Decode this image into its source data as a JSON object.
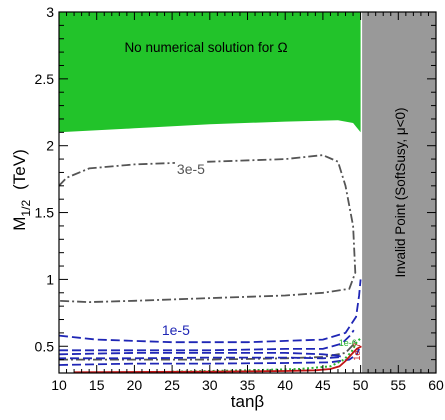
{
  "chart_data": {
    "type": "contour",
    "xlabel": "tanβ",
    "ylabel_main": "M",
    "ylabel_sub": "1/2",
    "ylabel_unit": "(TeV)",
    "xlim": [
      10,
      60
    ],
    "ylim": [
      0.3,
      3.0
    ],
    "xticks": [
      10,
      15,
      20,
      25,
      30,
      35,
      40,
      45,
      50,
      55,
      60
    ],
    "xtick_labels": [
      "10",
      "15",
      "20",
      "25",
      "30",
      "35",
      "40",
      "45",
      "50",
      "55",
      "60"
    ],
    "yticks": [
      0.5,
      1.0,
      1.5,
      2.0,
      2.5,
      3.0
    ],
    "ytick_labels": [
      "0.5",
      "1",
      "1.5",
      "2",
      "2.5",
      "3"
    ],
    "regions": [
      {
        "label": "No numerical solution for Ω",
        "color": "#22c32a",
        "boundary": [
          [
            10,
            2.1
          ],
          [
            20,
            2.13
          ],
          [
            30,
            2.16
          ],
          [
            40,
            2.18
          ],
          [
            47,
            2.19
          ],
          [
            49,
            2.17
          ],
          [
            50,
            2.1
          ],
          [
            50,
            3.0
          ],
          [
            10,
            3.0
          ]
        ]
      },
      {
        "label": "Invalid Point (SoftSusy, μ<0)",
        "color": "#999999",
        "boundary": [
          [
            50.2,
            0.3
          ],
          [
            60,
            0.3
          ],
          [
            60,
            3.0
          ],
          [
            50.2,
            3.0
          ]
        ]
      }
    ],
    "contours": [
      {
        "label": "3e-5",
        "color": "#555555",
        "dash": "dashdot",
        "points": [
          [
            10,
            1.7
          ],
          [
            11,
            1.76
          ],
          [
            14,
            1.83
          ],
          [
            20,
            1.86
          ],
          [
            30,
            1.88
          ],
          [
            40,
            1.9
          ],
          [
            45,
            1.93
          ],
          [
            47,
            1.88
          ],
          [
            48,
            1.7
          ],
          [
            49,
            1.4
          ],
          [
            49.3,
            1.05
          ],
          [
            48.5,
            0.93
          ],
          [
            45,
            0.9
          ],
          [
            40,
            0.88
          ],
          [
            30,
            0.86
          ],
          [
            20,
            0.84
          ],
          [
            14,
            0.83
          ],
          [
            10,
            0.84
          ]
        ],
        "label_at": [
          27.5,
          1.82
        ]
      },
      {
        "label": "",
        "color": "#555555",
        "dash": "dashdot",
        "points": [
          [
            10,
            0.4
          ],
          [
            20,
            0.4
          ],
          [
            30,
            0.4
          ],
          [
            40,
            0.41
          ],
          [
            45,
            0.42
          ],
          [
            48,
            0.45
          ],
          [
            49,
            0.51
          ],
          [
            49.2,
            0.54
          ]
        ],
        "label_at": null
      },
      {
        "label": "1e-5",
        "color": "#1f26b5",
        "dash": "dashed",
        "points": [
          [
            10,
            0.58
          ],
          [
            15,
            0.55
          ],
          [
            25,
            0.53
          ],
          [
            35,
            0.53
          ],
          [
            45,
            0.55
          ],
          [
            48,
            0.6
          ],
          [
            49.4,
            0.72
          ],
          [
            49.8,
            0.88
          ],
          [
            50,
            1.0
          ]
        ],
        "label_at": [
          25.5,
          0.615
        ]
      },
      {
        "label": "",
        "color": "#1f26b5",
        "dash": "dashed",
        "points": [
          [
            10,
            0.47
          ],
          [
            20,
            0.47
          ],
          [
            30,
            0.47
          ],
          [
            40,
            0.48
          ],
          [
            45,
            0.48
          ],
          [
            47.5,
            0.52
          ],
          [
            48.6,
            0.58
          ],
          [
            49.1,
            0.62
          ]
        ],
        "label_at": null
      },
      {
        "label": "",
        "color": "#1f26b5",
        "dash": "dashed",
        "points": [
          [
            10,
            0.44
          ],
          [
            20,
            0.45
          ],
          [
            30,
            0.45
          ],
          [
            40,
            0.45
          ],
          [
            45,
            0.44
          ],
          [
            47,
            0.43
          ],
          [
            47.5,
            0.42
          ],
          [
            45,
            0.41
          ],
          [
            40,
            0.415
          ],
          [
            30,
            0.415
          ],
          [
            20,
            0.41
          ],
          [
            10,
            0.41
          ]
        ],
        "label_at": null
      },
      {
        "label": "",
        "color": "#1f26b5",
        "dash": "dashed",
        "points": [
          [
            10,
            0.36
          ],
          [
            20,
            0.37
          ],
          [
            30,
            0.37
          ],
          [
            40,
            0.375
          ],
          [
            46,
            0.38
          ],
          [
            48.5,
            0.4
          ],
          [
            49.5,
            0.44
          ],
          [
            49.8,
            0.48
          ]
        ],
        "label_at": null
      },
      {
        "label": "1e-6",
        "color": "#27b32f",
        "dash": "dotted",
        "points": [
          [
            25,
            0.31
          ],
          [
            35,
            0.32
          ],
          [
            42,
            0.33
          ],
          [
            46,
            0.35
          ],
          [
            47.8,
            0.4
          ],
          [
            48.8,
            0.46
          ],
          [
            49.5,
            0.53
          ],
          [
            50,
            0.56
          ]
        ],
        "label_at": [
          48.3,
          0.53
        ]
      },
      {
        "label": "1e-7",
        "color": "#c01515",
        "dash": "solid",
        "points": [
          [
            12,
            0.305
          ],
          [
            30,
            0.31
          ],
          [
            40,
            0.315
          ],
          [
            44,
            0.32
          ],
          [
            46,
            0.33
          ],
          [
            47.2,
            0.35
          ],
          [
            48,
            0.39
          ],
          [
            48.8,
            0.44
          ],
          [
            49.5,
            0.48
          ],
          [
            50.1,
            0.5
          ]
        ],
        "label_at": [
          49.4,
          0.46
        ]
      }
    ]
  }
}
